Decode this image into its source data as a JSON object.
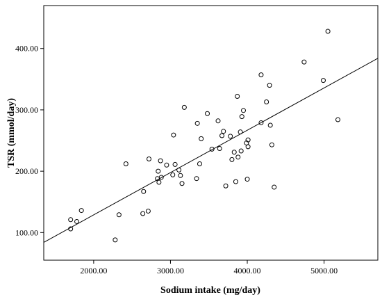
{
  "chart_data": {
    "type": "scatter",
    "title": "",
    "xlabel": "Sodium intake (mg/day)",
    "ylabel": "TSR (mmol/day)",
    "xlim": [
      1350,
      5700
    ],
    "ylim": [
      55,
      470
    ],
    "x_ticks": [
      2000,
      3000,
      4000,
      5000
    ],
    "y_ticks": [
      100,
      200,
      300,
      400
    ],
    "x_tick_labels": [
      "2000.00",
      "3000.00",
      "4000.00",
      "5000.00"
    ],
    "y_tick_labels": [
      "100.00",
      "200.00",
      "300.00",
      "400.00"
    ],
    "grid": false,
    "points": [
      {
        "x": 1700,
        "y": 121
      },
      {
        "x": 1700,
        "y": 106
      },
      {
        "x": 1780,
        "y": 118
      },
      {
        "x": 1840,
        "y": 136
      },
      {
        "x": 2280,
        "y": 88
      },
      {
        "x": 2330,
        "y": 129
      },
      {
        "x": 2420,
        "y": 212
      },
      {
        "x": 2640,
        "y": 131
      },
      {
        "x": 2650,
        "y": 167
      },
      {
        "x": 2710,
        "y": 135
      },
      {
        "x": 2720,
        "y": 220
      },
      {
        "x": 2830,
        "y": 188
      },
      {
        "x": 2840,
        "y": 200
      },
      {
        "x": 2850,
        "y": 182
      },
      {
        "x": 2870,
        "y": 217
      },
      {
        "x": 2880,
        "y": 190
      },
      {
        "x": 2950,
        "y": 210
      },
      {
        "x": 3030,
        "y": 194
      },
      {
        "x": 3040,
        "y": 259
      },
      {
        "x": 3060,
        "y": 211
      },
      {
        "x": 3110,
        "y": 202
      },
      {
        "x": 3130,
        "y": 193
      },
      {
        "x": 3150,
        "y": 180
      },
      {
        "x": 3180,
        "y": 304
      },
      {
        "x": 3340,
        "y": 188
      },
      {
        "x": 3350,
        "y": 278
      },
      {
        "x": 3380,
        "y": 212
      },
      {
        "x": 3400,
        "y": 253
      },
      {
        "x": 3480,
        "y": 294
      },
      {
        "x": 3540,
        "y": 236
      },
      {
        "x": 3620,
        "y": 282
      },
      {
        "x": 3640,
        "y": 237
      },
      {
        "x": 3670,
        "y": 258
      },
      {
        "x": 3690,
        "y": 265
      },
      {
        "x": 3720,
        "y": 176
      },
      {
        "x": 3780,
        "y": 257
      },
      {
        "x": 3800,
        "y": 219
      },
      {
        "x": 3830,
        "y": 231
      },
      {
        "x": 3850,
        "y": 183
      },
      {
        "x": 3870,
        "y": 322
      },
      {
        "x": 3880,
        "y": 223
      },
      {
        "x": 3910,
        "y": 264
      },
      {
        "x": 3920,
        "y": 233
      },
      {
        "x": 3930,
        "y": 289
      },
      {
        "x": 3950,
        "y": 299
      },
      {
        "x": 3990,
        "y": 246
      },
      {
        "x": 4000,
        "y": 187
      },
      {
        "x": 4010,
        "y": 251
      },
      {
        "x": 4010,
        "y": 240
      },
      {
        "x": 4180,
        "y": 357
      },
      {
        "x": 4180,
        "y": 279
      },
      {
        "x": 4250,
        "y": 313
      },
      {
        "x": 4290,
        "y": 340
      },
      {
        "x": 4300,
        "y": 275
      },
      {
        "x": 4320,
        "y": 243
      },
      {
        "x": 4350,
        "y": 174
      },
      {
        "x": 4740,
        "y": 378
      },
      {
        "x": 4990,
        "y": 348
      },
      {
        "x": 5050,
        "y": 428
      },
      {
        "x": 5180,
        "y": 284
      }
    ],
    "fit_line": {
      "x1": 1350,
      "y1": 84,
      "x2": 5700,
      "y2": 384
    }
  }
}
